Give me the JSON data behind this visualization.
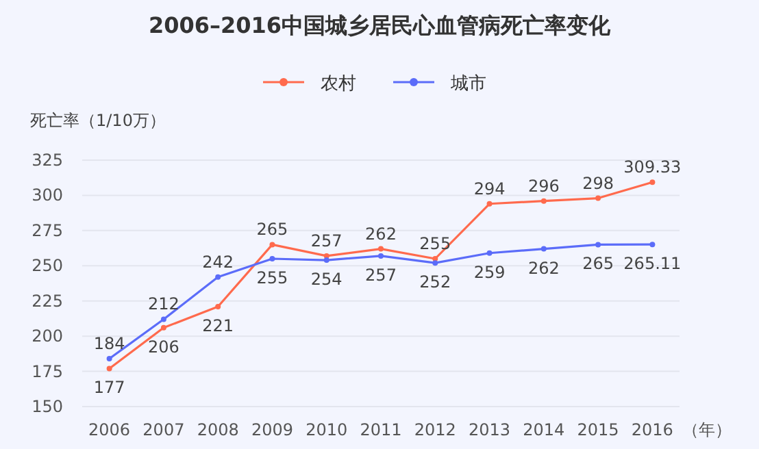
{
  "chart_data": {
    "type": "line",
    "title": "2006–2016中国城乡居民心血管病死亡率变化",
    "ylabel": "死亡率（1/10万）",
    "xlabel": "（年）",
    "categories": [
      "2006",
      "2007",
      "2008",
      "2009",
      "2010",
      "2011",
      "2012",
      "2013",
      "2014",
      "2015",
      "2016"
    ],
    "series": [
      {
        "name": "农村",
        "color": "#ff6a4d",
        "values": [
          177,
          206,
          221,
          265,
          257,
          262,
          255,
          294,
          296,
          298,
          309.33
        ]
      },
      {
        "name": "城市",
        "color": "#5b6cf9",
        "values": [
          184,
          212,
          242,
          255,
          254,
          257,
          252,
          259,
          262,
          265,
          265.11
        ]
      }
    ],
    "ylim": [
      150,
      325
    ],
    "yticks": [
      150,
      175,
      200,
      225,
      250,
      275,
      300,
      325
    ],
    "grid": "y",
    "legend": "top",
    "marker": "circle",
    "line_style": "solid",
    "data_labels": true
  }
}
